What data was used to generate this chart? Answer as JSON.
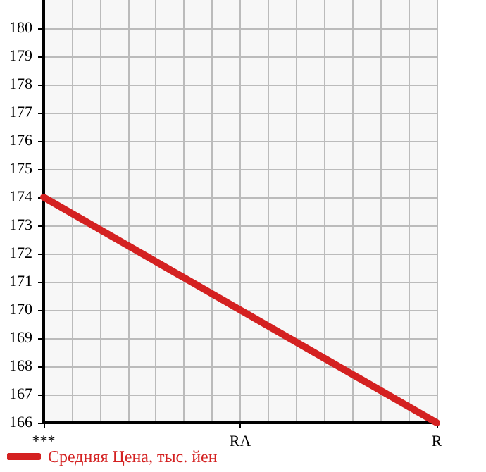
{
  "chart_data": {
    "type": "line",
    "categories": [
      "***",
      "RA",
      "R"
    ],
    "series": [
      {
        "name": "Средняя Цена, тыс. йен",
        "color": "#d42121",
        "values": [
          174,
          170,
          166
        ]
      }
    ],
    "ylim": [
      166,
      181
    ],
    "yticks": [
      166,
      167,
      168,
      169,
      170,
      171,
      172,
      173,
      174,
      175,
      176,
      177,
      178,
      179,
      180
    ],
    "grid": true,
    "legend": "bottom left",
    "marker": "none",
    "line_style": "solid"
  }
}
